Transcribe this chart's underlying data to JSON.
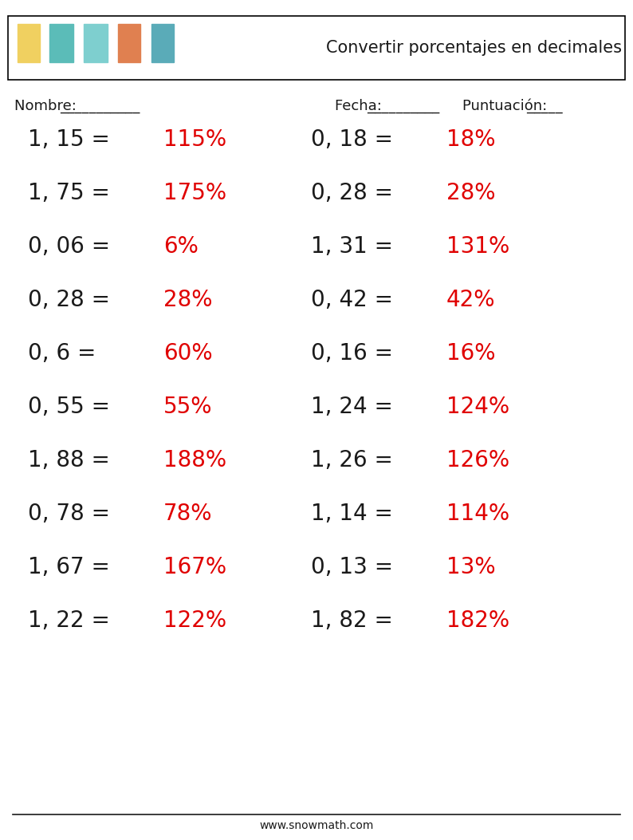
{
  "title": "Convertir porcentajes en decimales",
  "header_label_nombre": "Nombre: ",
  "header_underline_nombre": "___________",
  "header_label_fecha": "Fecha: ",
  "header_underline_fecha": "__________",
  "header_label_puntuacion": "Puntuación: ",
  "header_underline_puntuacion": "_____",
  "footer_url": "www.snowmath.com",
  "left_questions": [
    {
      "decimal": "1, 15",
      "answer": "115"
    },
    {
      "decimal": "1, 75",
      "answer": "175"
    },
    {
      "decimal": "0, 06",
      "answer": "6"
    },
    {
      "decimal": "0, 28",
      "answer": "28"
    },
    {
      "decimal": "0, 6",
      "answer": "60"
    },
    {
      "decimal": "0, 55",
      "answer": "55"
    },
    {
      "decimal": "1, 88",
      "answer": "188"
    },
    {
      "decimal": "0, 78",
      "answer": "78"
    },
    {
      "decimal": "1, 67",
      "answer": "167"
    },
    {
      "decimal": "1, 22",
      "answer": "122"
    }
  ],
  "right_questions": [
    {
      "decimal": "0, 18",
      "answer": "18"
    },
    {
      "decimal": "0, 28",
      "answer": "28"
    },
    {
      "decimal": "1, 31",
      "answer": "131"
    },
    {
      "decimal": "0, 42",
      "answer": "42"
    },
    {
      "decimal": "0, 16",
      "answer": "16"
    },
    {
      "decimal": "1, 24",
      "answer": "124"
    },
    {
      "decimal": "1, 26",
      "answer": "126"
    },
    {
      "decimal": "1, 14",
      "answer": "114"
    },
    {
      "decimal": "0, 13",
      "answer": "13"
    },
    {
      "decimal": "1, 82",
      "answer": "182"
    }
  ],
  "black_color": "#1a1a1a",
  "red_color": "#e00000",
  "background_color": "#ffffff",
  "header_box_color": "#ffffff",
  "header_box_edge": "#000000",
  "font_size_questions": 20,
  "font_size_header": 13,
  "font_size_title": 15,
  "font_size_footer": 10
}
